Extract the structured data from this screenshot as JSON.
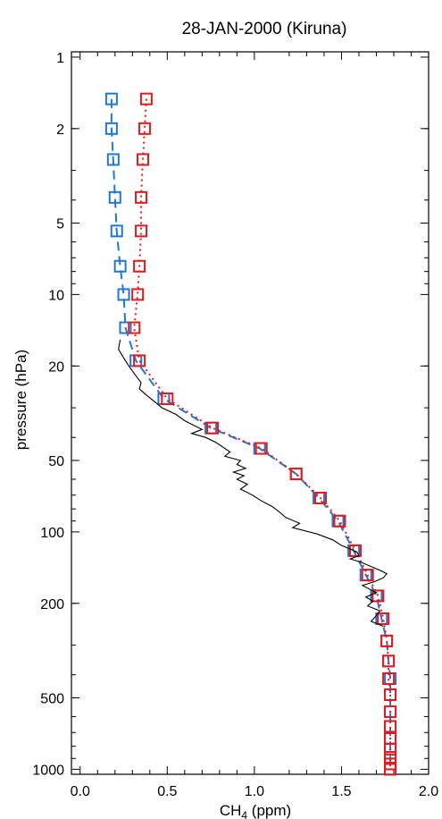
{
  "chart_data": {
    "type": "line",
    "title": "28-JAN-2000 (Kiruna)",
    "xlabel": "CH",
    "xlabel_sub": "4",
    "xlabel_unit": " (ppm)",
    "ylabel": "pressure (hPa)",
    "xlim": [
      -0.05,
      2.0
    ],
    "ylim": [
      1050,
      0.95
    ],
    "yscale": "log",
    "x_ticks": [
      {
        "value": 0.0,
        "label": "0.0"
      },
      {
        "value": 0.5,
        "label": "0.5"
      },
      {
        "value": 1.0,
        "label": "1.0"
      },
      {
        "value": 1.5,
        "label": "1.5"
      },
      {
        "value": 2.0,
        "label": "2.0"
      }
    ],
    "y_ticks": [
      {
        "value": 1,
        "label": "1"
      },
      {
        "value": 2,
        "label": "2"
      },
      {
        "value": 5,
        "label": "5"
      },
      {
        "value": 10,
        "label": "10"
      },
      {
        "value": 20,
        "label": "20"
      },
      {
        "value": 50,
        "label": "50"
      },
      {
        "value": 100,
        "label": "100"
      },
      {
        "value": 200,
        "label": "200"
      },
      {
        "value": 500,
        "label": "500"
      },
      {
        "value": 1000,
        "label": "1000"
      }
    ],
    "series": [
      {
        "color": "#1f78d4",
        "style": "dashed",
        "marker": "square",
        "points": [
          [
            0.18,
            1.5
          ],
          [
            0.18,
            2.0
          ],
          [
            0.19,
            2.7
          ],
          [
            0.2,
            3.9
          ],
          [
            0.21,
            5.4
          ],
          [
            0.23,
            7.6
          ],
          [
            0.25,
            10.0
          ],
          [
            0.26,
            13.8
          ],
          [
            0.32,
            19.0
          ],
          [
            0.48,
            27.5
          ],
          [
            0.75,
            36.5
          ],
          [
            1.03,
            44.5
          ],
          [
            1.24,
            57.0
          ],
          [
            1.37,
            72.0
          ],
          [
            1.48,
            90.0
          ],
          [
            1.57,
            120.0
          ],
          [
            1.64,
            152.0
          ],
          [
            1.7,
            186.0
          ],
          [
            1.73,
            232.0
          ],
          [
            1.76,
            288.0
          ],
          [
            1.77,
            350.0
          ],
          [
            1.78,
            415.0
          ],
          [
            1.78,
            485.0
          ],
          [
            1.78,
            572.0
          ],
          [
            1.78,
            660.0
          ],
          [
            1.78,
            742.0
          ],
          [
            1.78,
            822.0
          ],
          [
            1.78,
            890.0
          ],
          [
            1.78,
            950.0
          ],
          [
            1.78,
            1000.0
          ]
        ]
      },
      {
        "color": "#e41a1c",
        "style": "dotted",
        "marker": "square",
        "points": [
          [
            0.38,
            1.5
          ],
          [
            0.37,
            2.0
          ],
          [
            0.36,
            2.7
          ],
          [
            0.35,
            3.9
          ],
          [
            0.35,
            5.4
          ],
          [
            0.34,
            7.6
          ],
          [
            0.33,
            10.0
          ],
          [
            0.31,
            13.8
          ],
          [
            0.34,
            19.0
          ],
          [
            0.5,
            27.5
          ],
          [
            0.76,
            36.5
          ],
          [
            1.04,
            44.5
          ],
          [
            1.24,
            57.0
          ],
          [
            1.38,
            72.0
          ],
          [
            1.49,
            90.0
          ],
          [
            1.58,
            120.0
          ],
          [
            1.65,
            152.0
          ],
          [
            1.71,
            186.0
          ],
          [
            1.74,
            232.0
          ],
          [
            1.76,
            288.0
          ],
          [
            1.77,
            350.0
          ],
          [
            1.77,
            415.0
          ],
          [
            1.78,
            485.0
          ],
          [
            1.78,
            572.0
          ],
          [
            1.78,
            660.0
          ],
          [
            1.78,
            742.0
          ],
          [
            1.78,
            822.0
          ],
          [
            1.78,
            890.0
          ],
          [
            1.78,
            950.0
          ],
          [
            1.78,
            1000.0
          ]
        ]
      },
      {
        "color": "#000000",
        "style": "solid",
        "marker": "none",
        "points": [
          [
            0.23,
            15.5
          ],
          [
            0.22,
            17.0
          ],
          [
            0.25,
            18.5
          ],
          [
            0.27,
            19.5
          ],
          [
            0.29,
            20.5
          ],
          [
            0.32,
            22.0
          ],
          [
            0.35,
            23.5
          ],
          [
            0.34,
            25.0
          ],
          [
            0.38,
            26.5
          ],
          [
            0.42,
            28.0
          ],
          [
            0.47,
            30.0
          ],
          [
            0.55,
            32.0
          ],
          [
            0.6,
            34.0
          ],
          [
            0.65,
            35.5
          ],
          [
            0.7,
            37.0
          ],
          [
            0.64,
            38.5
          ],
          [
            0.72,
            40.0
          ],
          [
            0.78,
            42.0
          ],
          [
            0.82,
            44.0
          ],
          [
            0.86,
            46.0
          ],
          [
            0.83,
            48.0
          ],
          [
            0.92,
            50.0
          ],
          [
            0.9,
            52.0
          ],
          [
            0.95,
            54.0
          ],
          [
            0.88,
            56.0
          ],
          [
            0.94,
            58.0
          ],
          [
            0.9,
            60.0
          ],
          [
            0.96,
            63.0
          ],
          [
            0.92,
            66.0
          ],
          [
            0.99,
            70.0
          ],
          [
            1.04,
            74.0
          ],
          [
            1.1,
            78.0
          ],
          [
            1.14,
            82.0
          ],
          [
            1.18,
            87.0
          ],
          [
            1.26,
            92.0
          ],
          [
            1.22,
            96.0
          ],
          [
            1.36,
            102.0
          ],
          [
            1.45,
            108.0
          ],
          [
            1.5,
            114.0
          ],
          [
            1.55,
            118.0
          ],
          [
            1.59,
            122.0
          ],
          [
            1.6,
            126.0
          ],
          [
            1.55,
            130.0
          ],
          [
            1.61,
            134.0
          ],
          [
            1.65,
            138.0
          ],
          [
            1.71,
            144.0
          ],
          [
            1.76,
            150.0
          ],
          [
            1.74,
            156.0
          ],
          [
            1.69,
            162.0
          ],
          [
            1.62,
            168.0
          ],
          [
            1.66,
            174.0
          ],
          [
            1.7,
            180.0
          ],
          [
            1.64,
            188.0
          ],
          [
            1.68,
            196.0
          ],
          [
            1.65,
            205.0
          ],
          [
            1.72,
            215.0
          ],
          [
            1.7,
            225.0
          ],
          [
            1.67,
            238.0
          ],
          [
            1.74,
            250.0
          ]
        ]
      }
    ]
  }
}
